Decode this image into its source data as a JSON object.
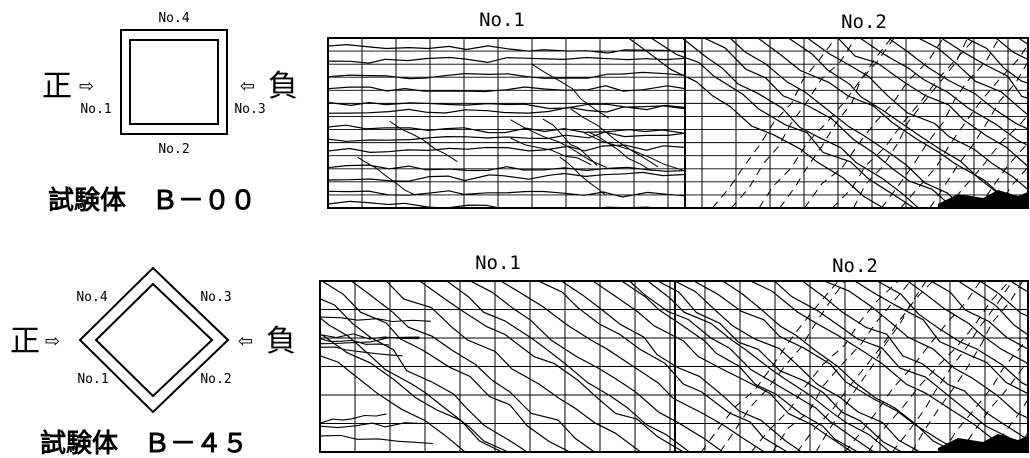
{
  "specimen_b00": {
    "title": "試験体　Ｂ－００",
    "face_top": "No.4",
    "face_left": "No.1",
    "face_right": "No.3",
    "face_bottom": "No.2",
    "positive": "正",
    "negative": "負",
    "panel_left_label": "No.1",
    "panel_right_label": "No.2"
  },
  "specimen_b45": {
    "title": "試験体　Ｂ－４５",
    "face_top_left": "No.4",
    "face_top_right": "No.3",
    "face_bottom_left": "No.1",
    "face_bottom_right": "No.2",
    "positive": "正",
    "negative": "負",
    "panel_left_label": "No.1",
    "panel_right_label": "No.2"
  },
  "arrow_glyph_right": "⇨",
  "arrow_glyph_left": "⇦",
  "colors": {
    "ink": "#000000",
    "paper": "#ffffff"
  }
}
